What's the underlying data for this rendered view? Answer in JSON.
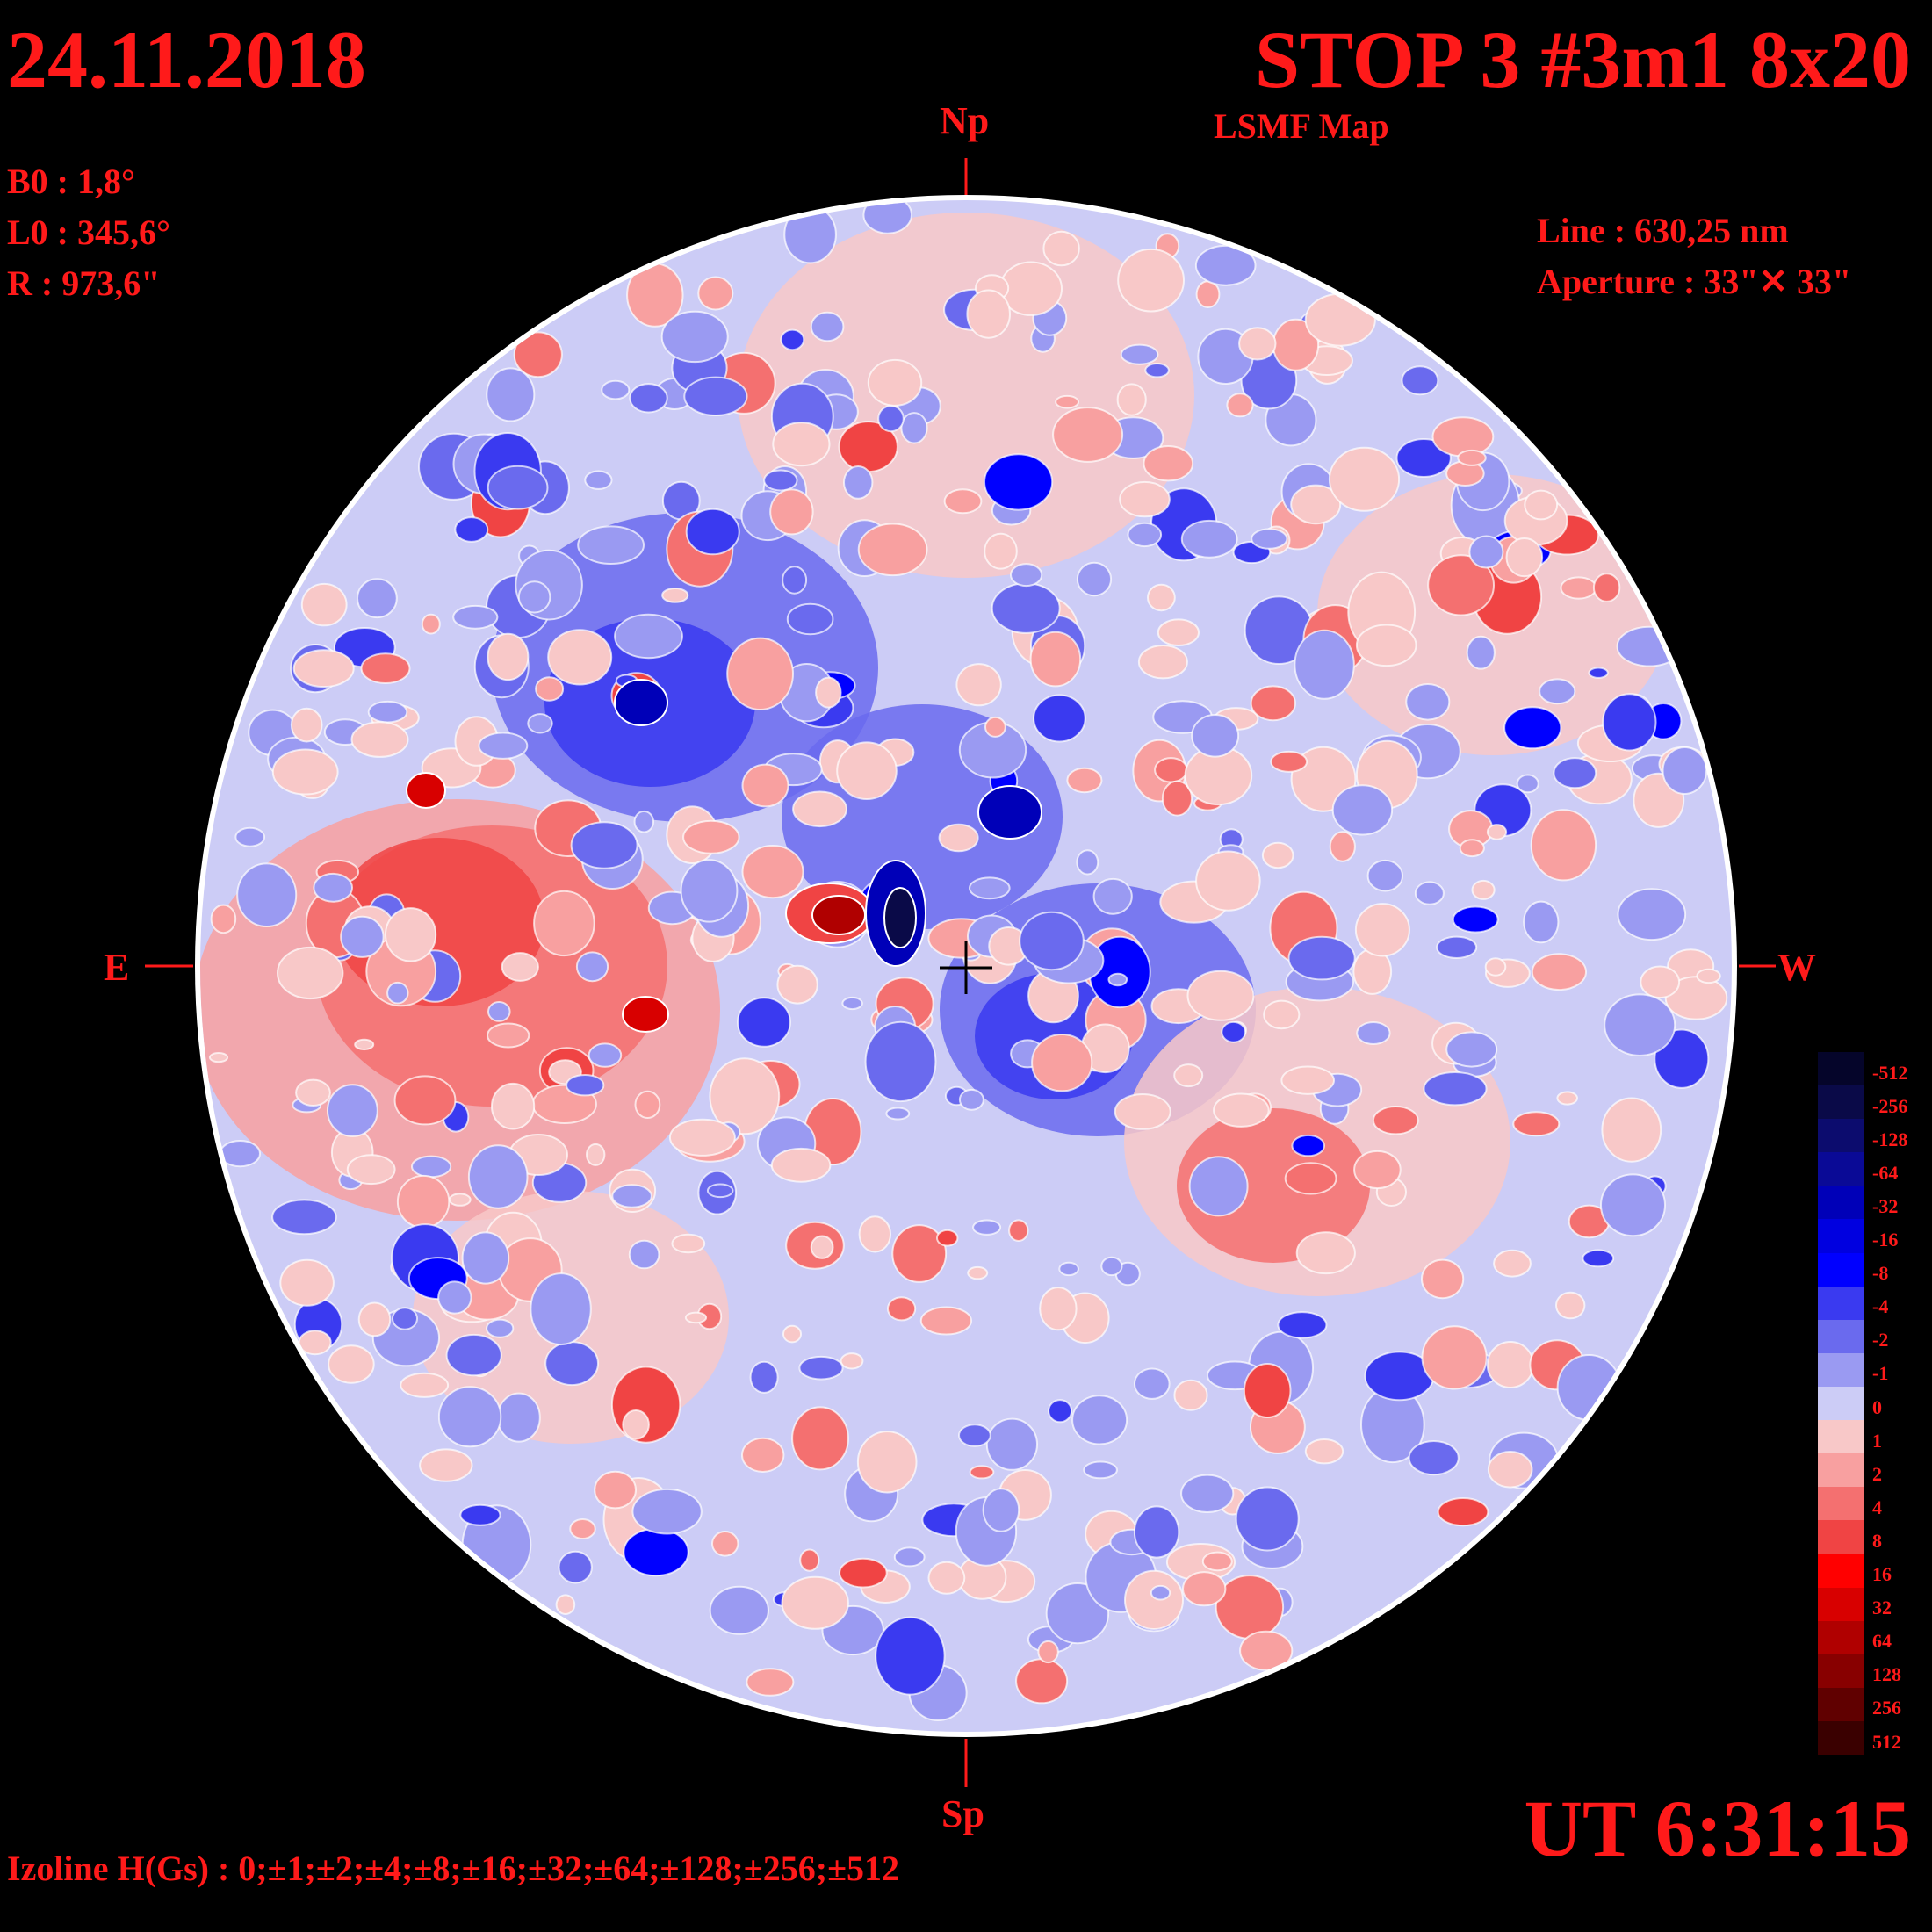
{
  "header": {
    "date": "24.11.2018",
    "title": "STOP 3 #3m1 8x20",
    "subtitle": "LSMF  Map"
  },
  "params": {
    "b0": "B0 : 1,8°",
    "l0": "L0 : 345,6°",
    "r": "R  : 973,6\""
  },
  "instrument": {
    "line": "Line :  630,25 nm",
    "aperture": "Aperture : 33\"✕ 33\""
  },
  "directions": {
    "north": "Np",
    "south": "Sp",
    "east": "E",
    "west": "W"
  },
  "time": "UT 6:31:15",
  "izoline": "Izoline H(Gs) : 0;±1;±2;±4;±8;±16;±32;±64;±128;±256;±512",
  "colors": {
    "background": "#000000",
    "text": "#ff1a1a",
    "contour": "#ffffff"
  },
  "colorbar": {
    "levels": [
      {
        "label": "-512",
        "color": "#05052a"
      },
      {
        "label": "-256",
        "color": "#0a0a48"
      },
      {
        "label": "-128",
        "color": "#0c0c6e"
      },
      {
        "label": "-64",
        "color": "#0a0a96"
      },
      {
        "label": "-32",
        "color": "#0000b8"
      },
      {
        "label": "-16",
        "color": "#0000e0"
      },
      {
        "label": "-8",
        "color": "#0000ff"
      },
      {
        "label": "-4",
        "color": "#3a3af0"
      },
      {
        "label": "-2",
        "color": "#6a6aee"
      },
      {
        "label": "-1",
        "color": "#9a9af2"
      },
      {
        "label": "0",
        "color": "#ccccf6"
      },
      {
        "label": "1",
        "color": "#f8c8c8"
      },
      {
        "label": "2",
        "color": "#f8a0a0"
      },
      {
        "label": "4",
        "color": "#f47070"
      },
      {
        "label": "8",
        "color": "#f04444"
      },
      {
        "label": "16",
        "color": "#ff0000"
      },
      {
        "label": "32",
        "color": "#d80000"
      },
      {
        "label": "64",
        "color": "#b00000"
      },
      {
        "label": "128",
        "color": "#880000"
      },
      {
        "label": "256",
        "color": "#600000"
      },
      {
        "label": "512",
        "color": "#3a0000"
      }
    ]
  },
  "disk_regions": [
    {
      "polarity": "positive",
      "location": "east-center",
      "level": "8"
    },
    {
      "polarity": "negative",
      "location": "center-north-east",
      "level": "-16"
    },
    {
      "polarity": "positive",
      "location": "center-sunspot",
      "level": "64"
    },
    {
      "polarity": "negative",
      "location": "center-sunspot",
      "level": "-128"
    },
    {
      "polarity": "negative",
      "location": "center-west",
      "level": "-8"
    },
    {
      "polarity": "positive",
      "location": "north",
      "level": "4"
    },
    {
      "polarity": "positive",
      "location": "south-west",
      "level": "4"
    }
  ]
}
